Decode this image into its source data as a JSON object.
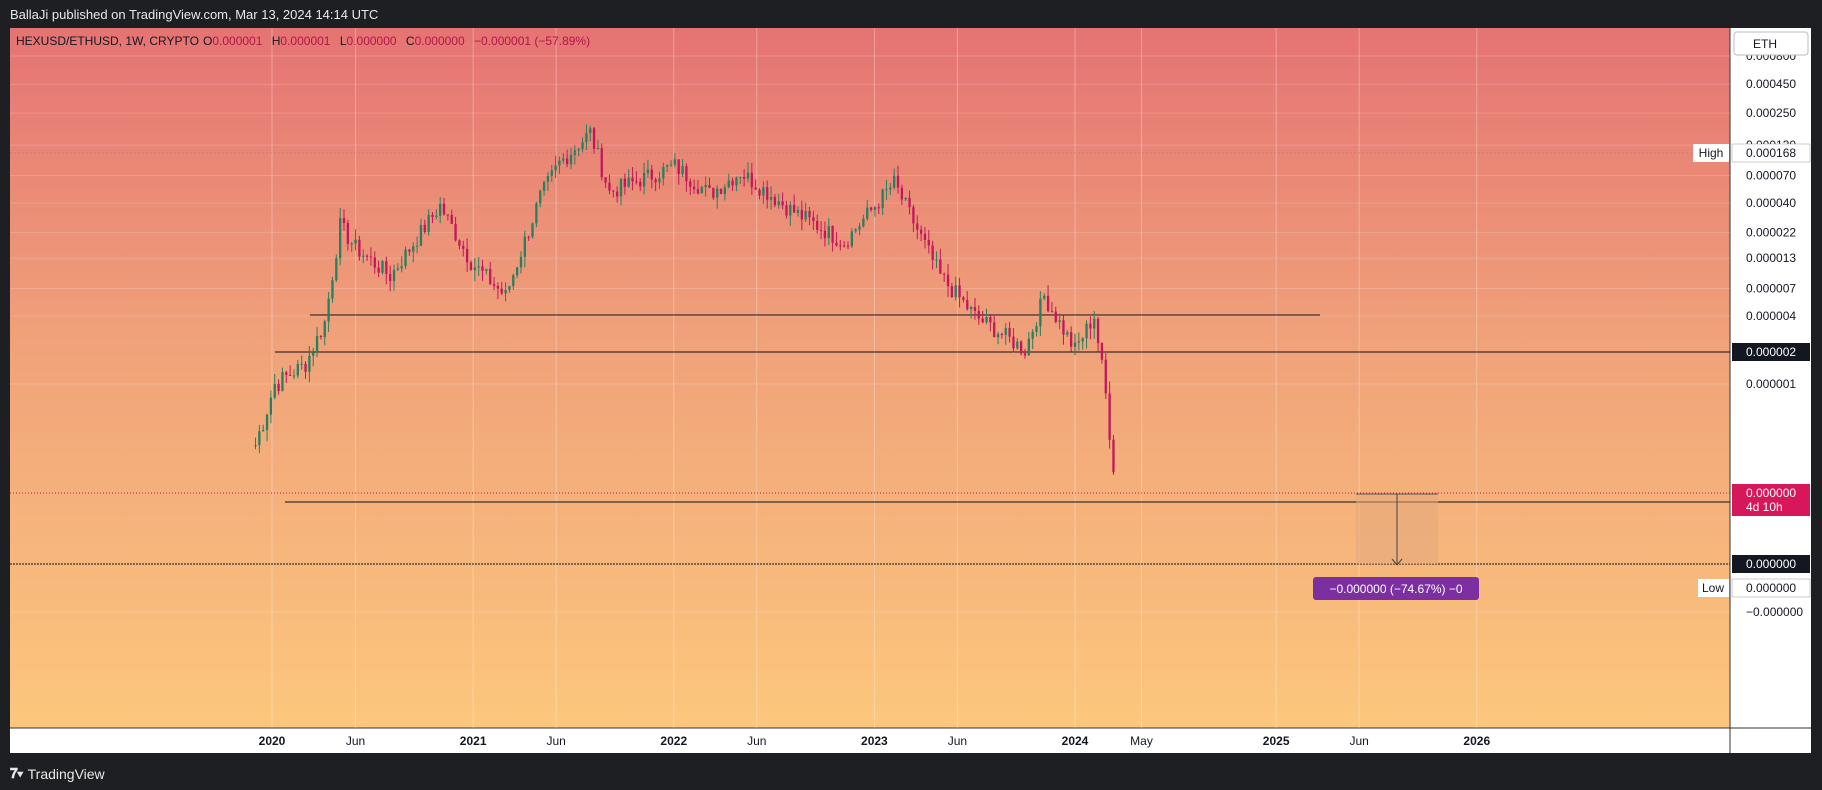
{
  "header": {
    "published": "BallaJi published on TradingView.com, Mar 13, 2024 14:14 UTC"
  },
  "legend": {
    "symbol": "HEXUSD/ETHUSD, 1W, CRYPTO",
    "o_label": "O",
    "o_value": "0.000001",
    "h_label": "H",
    "h_value": "0.000001",
    "l_label": "L",
    "l_value": "0.000000",
    "c_label": "C",
    "c_value": "0.000000",
    "change": "−0.000001 (−57.89%)"
  },
  "footer": {
    "brand": "TradingView",
    "logo": "tv-logo-icon"
  },
  "colors": {
    "bg_top": "#e57373",
    "bg_mid": "#f0a27a",
    "bg_bottom": "#fcc77d",
    "up": "#26805f",
    "down": "#c2185b",
    "measure_label": "#7b2fa1",
    "last_price": "#d6185a"
  },
  "chart_data": {
    "type": "candlestick",
    "symbol": "HEXUSD/ETHUSD",
    "interval": "1W",
    "currency_button": "ETH",
    "y_axis_ticks": [
      "0.000800",
      "0.000450",
      "0.000250",
      "0.000130",
      "0.000070",
      "0.000040",
      "0.000022",
      "0.000013",
      "0.000007",
      "0.000004",
      "0.000001",
      "−0.000000"
    ],
    "x_axis_ticks": [
      {
        "label": "2020",
        "bold": true
      },
      {
        "label": "Jun",
        "bold": false
      },
      {
        "label": "2021",
        "bold": true
      },
      {
        "label": "Jun",
        "bold": false
      },
      {
        "label": "2022",
        "bold": true
      },
      {
        "label": "Jun",
        "bold": false
      },
      {
        "label": "2023",
        "bold": true
      },
      {
        "label": "Jun",
        "bold": false
      },
      {
        "label": "2024",
        "bold": true
      },
      {
        "label": "May",
        "bold": false
      },
      {
        "label": "2025",
        "bold": true
      },
      {
        "label": "Jun",
        "bold": false
      },
      {
        "label": "2026",
        "bold": true
      }
    ],
    "high_marker": {
      "label": "High",
      "value": "0.000168"
    },
    "low_marker": {
      "label": "Low",
      "value": "0.000000"
    },
    "last_price": {
      "value": "0.000000",
      "countdown": "4d 10h"
    },
    "horizontal_levels": [
      {
        "value": "0.000004",
        "label": null
      },
      {
        "value": "0.000002",
        "label": "0.000002"
      },
      {
        "value": "0.000000",
        "label": "0.000000"
      },
      {
        "value": "0.000000",
        "label": "0.000000"
      }
    ],
    "measure": {
      "label": "−0.000000 (−74.67%) −0"
    },
    "series": [
      {
        "date": "2019-12-02",
        "close": 4e-07
      },
      {
        "date": "2020-01-06",
        "close": 1e-06
      },
      {
        "date": "2020-03-02",
        "close": 1.5e-06
      },
      {
        "date": "2020-04-06",
        "close": 3.5e-06
      },
      {
        "date": "2020-05-04",
        "close": 2.5e-05
      },
      {
        "date": "2020-06-01",
        "close": 1.6e-05
      },
      {
        "date": "2020-08-03",
        "close": 9e-06
      },
      {
        "date": "2020-11-02",
        "close": 3.8e-05
      },
      {
        "date": "2020-12-28",
        "close": 1.2e-05
      },
      {
        "date": "2021-03-01",
        "close": 6e-06
      },
      {
        "date": "2021-05-03",
        "close": 4.5e-05
      },
      {
        "date": "2021-06-07",
        "close": 9e-05
      },
      {
        "date": "2021-08-02",
        "close": 0.000168
      },
      {
        "date": "2021-09-06",
        "close": 5e-05
      },
      {
        "date": "2022-01-03",
        "close": 8.5e-05
      },
      {
        "date": "2022-03-07",
        "close": 4.8e-05
      },
      {
        "date": "2022-05-02",
        "close": 7.5e-05
      },
      {
        "date": "2022-08-01",
        "close": 3.5e-05
      },
      {
        "date": "2022-11-07",
        "close": 1.8e-05
      },
      {
        "date": "2023-02-06",
        "close": 6e-05
      },
      {
        "date": "2023-05-01",
        "close": 9e-06
      },
      {
        "date": "2023-07-03",
        "close": 4e-06
      },
      {
        "date": "2023-10-02",
        "close": 2e-06
      },
      {
        "date": "2023-11-06",
        "close": 6e-06
      },
      {
        "date": "2024-01-01",
        "close": 2e-06
      },
      {
        "date": "2024-02-05",
        "close": 4e-06
      },
      {
        "date": "2024-03-11",
        "close": 3e-07
      }
    ]
  }
}
